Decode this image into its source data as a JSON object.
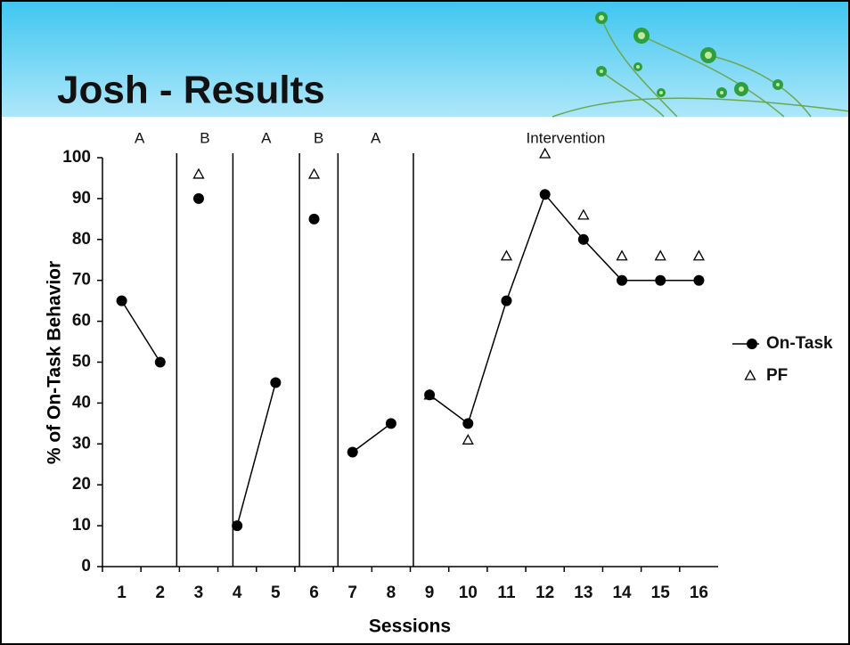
{
  "title": "Josh - Results",
  "chart_data": {
    "type": "line",
    "x_label": "Sessions",
    "y_label": "% of On-Task Behavior",
    "x": [
      1,
      2,
      3,
      4,
      5,
      6,
      7,
      8,
      9,
      10,
      11,
      12,
      13,
      14,
      15,
      16
    ],
    "xlim": [
      0.5,
      16.5
    ],
    "xticks": [
      1,
      2,
      3,
      4,
      5,
      6,
      7,
      8,
      9,
      10,
      11,
      12,
      13,
      14,
      15,
      16
    ],
    "ylim": [
      0,
      100
    ],
    "yticks": [
      0,
      10,
      20,
      30,
      40,
      50,
      60,
      70,
      80,
      90,
      100
    ],
    "phases": [
      "A",
      "B",
      "A",
      "B",
      "A",
      "Intervention"
    ],
    "phase_boundaries": [
      2.43,
      3.89,
      5.62,
      6.62,
      8.58
    ],
    "series": [
      {
        "name": "On-Task",
        "color": "#000000",
        "marker": "circle",
        "values": [
          65,
          50,
          90,
          10,
          45,
          85,
          28,
          35,
          42,
          35,
          65,
          91,
          80,
          70,
          70,
          70
        ]
      },
      {
        "name": "PF",
        "color": "#000000",
        "marker": "triangle",
        "values": [
          null,
          null,
          95,
          null,
          null,
          95,
          null,
          null,
          41,
          30,
          75,
          100,
          85,
          75,
          75,
          75
        ]
      }
    ]
  }
}
